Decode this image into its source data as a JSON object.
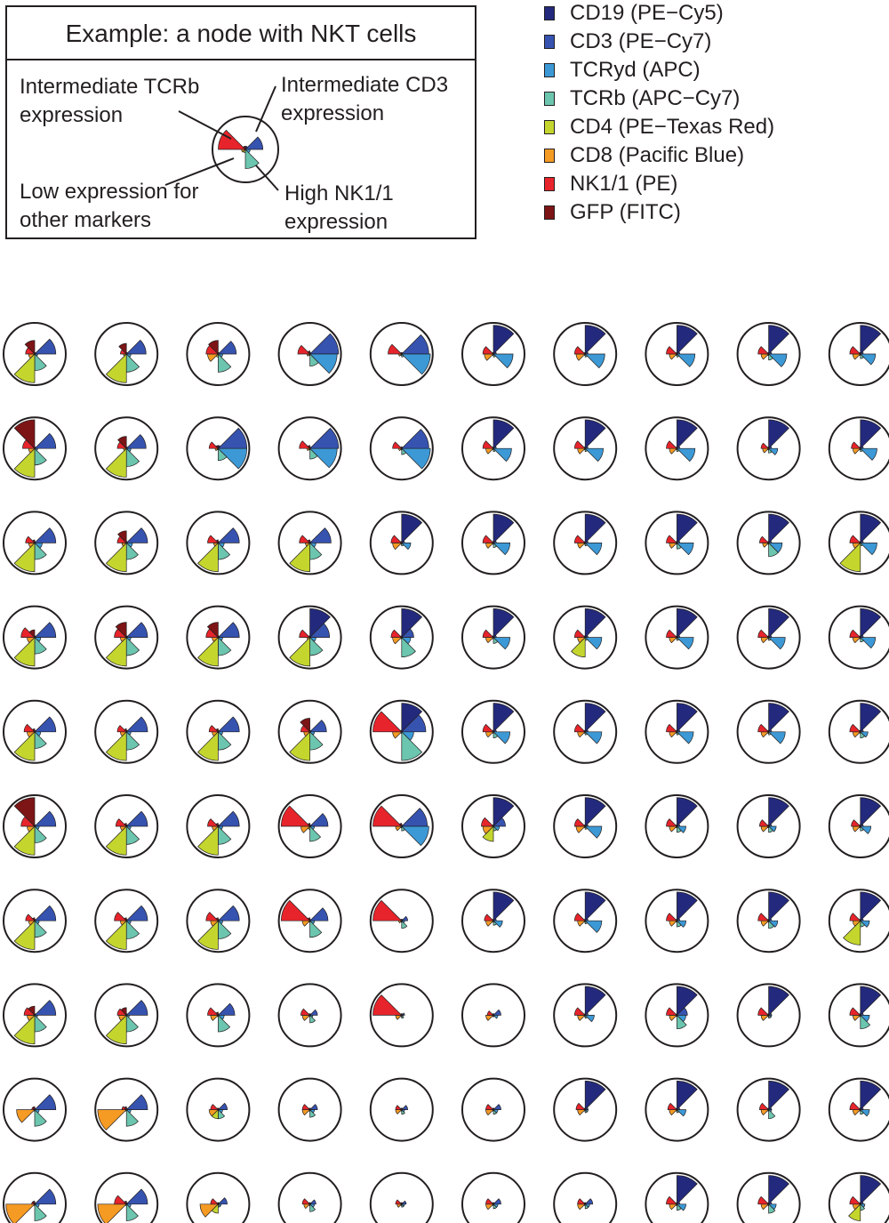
{
  "example": {
    "title": "Example: a node with NKT cells",
    "annotations": {
      "tcrb": [
        "Intermediate TCRb",
        "expression"
      ],
      "cd3": [
        "Intermediate CD3",
        "expression"
      ],
      "low": [
        "Low expression for",
        "other markers"
      ],
      "nk": [
        "High NK1/1",
        "expression"
      ]
    },
    "star": [
      0.1,
      0.55,
      0.15,
      0.6,
      0.1,
      0.12,
      0.85,
      0.1
    ]
  },
  "legend": [
    {
      "label": "CD19 (PE−Cy5)",
      "color": "#232a7d"
    },
    {
      "label": "CD3 (PE−Cy7)",
      "color": "#3653b0"
    },
    {
      "label": "TCRyd (APC)",
      "color": "#3c99d6"
    },
    {
      "label": "TCRb (APC−Cy7)",
      "color": "#6cc5ae"
    },
    {
      "label": "CD4 (PE−Texas Red)",
      "color": "#c4d62e"
    },
    {
      "label": "CD8 (Pacific Blue)",
      "color": "#f59a23"
    },
    {
      "label": "NK1/1 (PE)",
      "color": "#e7242b"
    },
    {
      "label": "GFP (FITC)",
      "color": "#7d1416"
    }
  ],
  "chart_data": {
    "type": "star-glyph-grid",
    "markers": [
      "CD19 (PE−Cy5)",
      "CD3 (PE−Cy7)",
      "TCRyd (APC)",
      "TCRb (APC−Cy7)",
      "CD4 (PE−Texas Red)",
      "CD8 (Pacific Blue)",
      "NK1/1 (PE)",
      "GFP (FITC)"
    ],
    "rows": 10,
    "cols": 10,
    "nodes": [
      [
        [
          0.05,
          0.7,
          0.1,
          0.55,
          0.95,
          0.2,
          0.3,
          0.45
        ],
        [
          0.05,
          0.65,
          0.15,
          0.6,
          0.95,
          0.1,
          0.2,
          0.35
        ],
        [
          0.05,
          0.6,
          0.15,
          0.6,
          0.1,
          0.35,
          0.4,
          0.45
        ],
        [
          0.05,
          0.95,
          0.9,
          0.4,
          0.05,
          0.1,
          0.4,
          0.1
        ],
        [
          0.05,
          0.9,
          0.95,
          0.1,
          0.05,
          0.1,
          0.45,
          0.05
        ],
        [
          0.95,
          0.1,
          0.65,
          0.1,
          0.05,
          0.3,
          0.35,
          0.05
        ],
        [
          0.95,
          0.1,
          0.65,
          0.1,
          0.05,
          0.3,
          0.35,
          0.05
        ],
        [
          0.95,
          0.1,
          0.6,
          0.1,
          0.05,
          0.25,
          0.35,
          0.05
        ],
        [
          0.95,
          0.1,
          0.6,
          0.2,
          0.05,
          0.25,
          0.35,
          0.05
        ],
        [
          0.95,
          0.1,
          0.5,
          0.15,
          0.05,
          0.25,
          0.35,
          0.05
        ]
      ],
      [
        [
          0.05,
          0.7,
          0.1,
          0.55,
          0.95,
          0.2,
          0.4,
          0.95
        ],
        [
          0.05,
          0.65,
          0.15,
          0.6,
          0.95,
          0.1,
          0.3,
          0.4
        ],
        [
          0.1,
          0.95,
          0.95,
          0.4,
          0.05,
          0.1,
          0.3,
          0.1
        ],
        [
          0.05,
          0.95,
          0.9,
          0.35,
          0.05,
          0.1,
          0.35,
          0.1
        ],
        [
          0.05,
          0.9,
          0.95,
          0.2,
          0.05,
          0.1,
          0.3,
          0.05
        ],
        [
          0.95,
          0.1,
          0.6,
          0.1,
          0.05,
          0.25,
          0.35,
          0.05
        ],
        [
          0.95,
          0.1,
          0.6,
          0.1,
          0.05,
          0.25,
          0.35,
          0.05
        ],
        [
          0.95,
          0.1,
          0.6,
          0.1,
          0.05,
          0.25,
          0.35,
          0.05
        ],
        [
          0.95,
          0.1,
          0.3,
          0.15,
          0.05,
          0.2,
          0.25,
          0.05
        ],
        [
          0.95,
          0.1,
          0.55,
          0.1,
          0.05,
          0.25,
          0.3,
          0.05
        ]
      ],
      [
        [
          0.05,
          0.7,
          0.25,
          0.55,
          0.95,
          0.2,
          0.3,
          0.1
        ],
        [
          0.05,
          0.7,
          0.2,
          0.55,
          0.95,
          0.15,
          0.3,
          0.4
        ],
        [
          0.05,
          0.7,
          0.2,
          0.55,
          0.95,
          0.15,
          0.35,
          0.1
        ],
        [
          0.05,
          0.7,
          0.2,
          0.55,
          0.95,
          0.15,
          0.35,
          0.1
        ],
        [
          0.95,
          0.1,
          0.3,
          0.1,
          0.05,
          0.3,
          0.35,
          0.05
        ],
        [
          0.95,
          0.1,
          0.55,
          0.15,
          0.05,
          0.25,
          0.35,
          0.05
        ],
        [
          0.95,
          0.1,
          0.55,
          0.1,
          0.05,
          0.25,
          0.35,
          0.05
        ],
        [
          0.95,
          0.1,
          0.55,
          0.2,
          0.05,
          0.25,
          0.35,
          0.05
        ],
        [
          0.95,
          0.1,
          0.45,
          0.45,
          0.05,
          0.2,
          0.3,
          0.05
        ],
        [
          0.95,
          0.1,
          0.55,
          0.1,
          0.95,
          0.25,
          0.35,
          0.05
        ]
      ],
      [
        [
          0.05,
          0.7,
          0.2,
          0.55,
          0.95,
          0.25,
          0.45,
          0.25
        ],
        [
          0.05,
          0.7,
          0.15,
          0.6,
          0.95,
          0.2,
          0.4,
          0.5
        ],
        [
          0.05,
          0.7,
          0.15,
          0.6,
          0.95,
          0.2,
          0.4,
          0.5
        ],
        [
          0.95,
          0.65,
          0.2,
          0.6,
          0.95,
          0.1,
          0.35,
          0.05
        ],
        [
          0.95,
          0.4,
          0.3,
          0.65,
          0.05,
          0.3,
          0.35,
          0.05
        ],
        [
          0.95,
          0.1,
          0.55,
          0.2,
          0.05,
          0.25,
          0.35,
          0.05
        ],
        [
          0.95,
          0.1,
          0.55,
          0.1,
          0.65,
          0.25,
          0.35,
          0.05
        ],
        [
          0.95,
          0.1,
          0.55,
          0.1,
          0.05,
          0.25,
          0.35,
          0.05
        ],
        [
          0.95,
          0.1,
          0.55,
          0.1,
          0.05,
          0.25,
          0.35,
          0.05
        ],
        [
          0.95,
          0.1,
          0.5,
          0.15,
          0.05,
          0.25,
          0.35,
          0.05
        ]
      ],
      [
        [
          0.05,
          0.7,
          0.2,
          0.55,
          0.95,
          0.25,
          0.35,
          0.1
        ],
        [
          0.05,
          0.7,
          0.15,
          0.6,
          0.95,
          0.2,
          0.3,
          0.1
        ],
        [
          0.05,
          0.7,
          0.15,
          0.6,
          0.95,
          0.2,
          0.3,
          0.1
        ],
        [
          0.05,
          0.55,
          0.15,
          0.6,
          0.95,
          0.2,
          0.3,
          0.45
        ],
        [
          0.95,
          0.8,
          0.4,
          0.95,
          0.05,
          0.3,
          0.95,
          0.05
        ],
        [
          0.95,
          0.1,
          0.55,
          0.2,
          0.05,
          0.25,
          0.35,
          0.05
        ],
        [
          0.95,
          0.1,
          0.55,
          0.1,
          0.05,
          0.25,
          0.35,
          0.05
        ],
        [
          0.95,
          0.1,
          0.55,
          0.1,
          0.05,
          0.25,
          0.35,
          0.05
        ],
        [
          0.95,
          0.1,
          0.55,
          0.1,
          0.05,
          0.25,
          0.35,
          0.05
        ],
        [
          0.95,
          0.1,
          0.25,
          0.2,
          0.05,
          0.25,
          0.35,
          0.05
        ]
      ],
      [
        [
          0.05,
          0.7,
          0.15,
          0.55,
          0.95,
          0.25,
          0.45,
          0.95
        ],
        [
          0.05,
          0.7,
          0.15,
          0.6,
          0.95,
          0.2,
          0.35,
          0.1
        ],
        [
          0.05,
          0.7,
          0.15,
          0.6,
          0.95,
          0.2,
          0.35,
          0.1
        ],
        [
          0.05,
          0.6,
          0.15,
          0.5,
          0.1,
          0.3,
          0.95,
          0.1
        ],
        [
          0.05,
          0.85,
          0.9,
          0.15,
          0.05,
          0.2,
          0.95,
          0.1
        ],
        [
          0.95,
          0.4,
          0.2,
          0.15,
          0.5,
          0.35,
          0.4,
          0.05
        ],
        [
          0.95,
          0.1,
          0.55,
          0.1,
          0.05,
          0.3,
          0.35,
          0.05
        ],
        [
          0.95,
          0.1,
          0.3,
          0.2,
          0.05,
          0.25,
          0.35,
          0.05
        ],
        [
          0.95,
          0.1,
          0.25,
          0.2,
          0.05,
          0.25,
          0.3,
          0.05
        ],
        [
          0.95,
          0.1,
          0.35,
          0.15,
          0.05,
          0.25,
          0.3,
          0.05
        ]
      ],
      [
        [
          0.05,
          0.7,
          0.15,
          0.55,
          0.95,
          0.2,
          0.3,
          0.1
        ],
        [
          0.05,
          0.7,
          0.15,
          0.6,
          0.95,
          0.2,
          0.4,
          0.1
        ],
        [
          0.05,
          0.7,
          0.15,
          0.6,
          0.95,
          0.25,
          0.4,
          0.1
        ],
        [
          0.05,
          0.6,
          0.15,
          0.55,
          0.05,
          0.25,
          0.95,
          0.1
        ],
        [
          0.05,
          0.2,
          0.1,
          0.25,
          0.05,
          0.1,
          0.95,
          0.05
        ],
        [
          0.95,
          0.1,
          0.3,
          0.15,
          0.05,
          0.25,
          0.3,
          0.05
        ],
        [
          0.95,
          0.1,
          0.55,
          0.1,
          0.05,
          0.25,
          0.35,
          0.05
        ],
        [
          0.95,
          0.1,
          0.3,
          0.2,
          0.05,
          0.25,
          0.35,
          0.05
        ],
        [
          0.95,
          0.1,
          0.3,
          0.25,
          0.05,
          0.25,
          0.35,
          0.05
        ],
        [
          0.95,
          0.1,
          0.3,
          0.2,
          0.8,
          0.25,
          0.35,
          0.05
        ]
      ],
      [
        [
          0.05,
          0.7,
          0.1,
          0.55,
          0.95,
          0.25,
          0.35,
          0.3
        ],
        [
          0.05,
          0.7,
          0.1,
          0.55,
          0.95,
          0.25,
          0.3,
          0.25
        ],
        [
          0.05,
          0.55,
          0.2,
          0.55,
          0.05,
          0.25,
          0.35,
          0.1
        ],
        [
          0.05,
          0.25,
          0.1,
          0.25,
          0.05,
          0.25,
          0.3,
          0.05
        ],
        [
          0.05,
          0.1,
          0.05,
          0.1,
          0.05,
          0.2,
          0.95,
          0.05
        ],
        [
          0.05,
          0.25,
          0.15,
          0.05,
          0.05,
          0.25,
          0.2,
          0.05
        ],
        [
          0.95,
          0.1,
          0.3,
          0.1,
          0.05,
          0.25,
          0.35,
          0.05
        ],
        [
          0.95,
          0.35,
          0.3,
          0.45,
          0.05,
          0.25,
          0.35,
          0.05
        ],
        [
          0.95,
          0.1,
          0.1,
          0.1,
          0.05,
          0.25,
          0.35,
          0.05
        ],
        [
          0.95,
          0.1,
          0.3,
          0.45,
          0.05,
          0.25,
          0.35,
          0.05
        ]
      ],
      [
        [
          0.05,
          0.7,
          0.15,
          0.55,
          0.05,
          0.6,
          0.1,
          0.1
        ],
        [
          0.05,
          0.7,
          0.15,
          0.55,
          0.05,
          0.95,
          0.15,
          0.1
        ],
        [
          0.05,
          0.3,
          0.15,
          0.3,
          0.3,
          0.3,
          0.25,
          0.05
        ],
        [
          0.05,
          0.25,
          0.15,
          0.25,
          0.05,
          0.25,
          0.25,
          0.05
        ],
        [
          0.05,
          0.2,
          0.1,
          0.15,
          0.05,
          0.2,
          0.2,
          0.05
        ],
        [
          0.05,
          0.25,
          0.15,
          0.15,
          0.05,
          0.25,
          0.25,
          0.05
        ],
        [
          0.95,
          0.1,
          0.1,
          0.1,
          0.05,
          0.25,
          0.3,
          0.05
        ],
        [
          0.95,
          0.1,
          0.3,
          0.1,
          0.05,
          0.25,
          0.3,
          0.05
        ],
        [
          0.95,
          0.1,
          0.1,
          0.3,
          0.05,
          0.25,
          0.3,
          0.05
        ],
        [
          0.95,
          0.1,
          0.3,
          0.15,
          0.05,
          0.25,
          0.35,
          0.05
        ]
      ],
      [
        [
          0.05,
          0.7,
          0.15,
          0.55,
          0.05,
          0.95,
          0.1,
          0.1
        ],
        [
          0.05,
          0.7,
          0.15,
          0.55,
          0.05,
          0.95,
          0.4,
          0.1
        ],
        [
          0.05,
          0.3,
          0.1,
          0.1,
          0.3,
          0.6,
          0.25,
          0.05
        ],
        [
          0.05,
          0.2,
          0.15,
          0.25,
          0.05,
          0.2,
          0.25,
          0.05
        ],
        [
          0.05,
          0.15,
          0.1,
          0.1,
          0.05,
          0.15,
          0.2,
          0.05
        ],
        [
          0.05,
          0.25,
          0.15,
          0.15,
          0.05,
          0.25,
          0.25,
          0.05
        ],
        [
          0.05,
          0.25,
          0.15,
          0.15,
          0.05,
          0.25,
          0.25,
          0.05
        ],
        [
          0.95,
          0.1,
          0.3,
          0.2,
          0.05,
          0.25,
          0.35,
          0.05
        ],
        [
          0.95,
          0.1,
          0.25,
          0.3,
          0.05,
          0.25,
          0.35,
          0.05
        ],
        [
          0.95,
          0.1,
          0.15,
          0.2,
          0.55,
          0.25,
          0.35,
          0.05
        ]
      ]
    ]
  }
}
